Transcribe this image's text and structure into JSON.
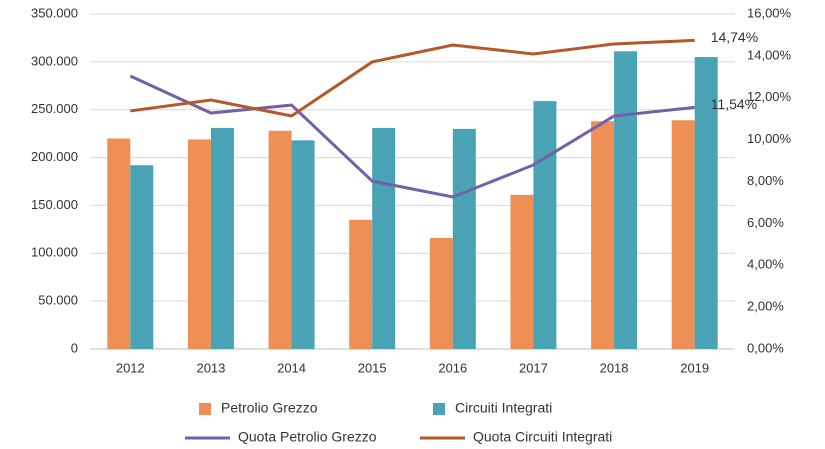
{
  "chart_data": {
    "type": "bar_line",
    "categories": [
      "2012",
      "2013",
      "2014",
      "2015",
      "2016",
      "2017",
      "2018",
      "2019"
    ],
    "series": [
      {
        "name": "Petrolio Grezzo",
        "color": "#ee8f55",
        "kind": "bar",
        "values": [
          220000,
          219000,
          228000,
          135000,
          116000,
          161000,
          238000,
          239000
        ]
      },
      {
        "name": "Circuiti Integrati",
        "color": "#4aa3b5",
        "kind": "bar",
        "values": [
          192000,
          231000,
          218000,
          231000,
          230000,
          259000,
          311000,
          305000
        ]
      },
      {
        "name": "Quota Petrolio Grezzo",
        "color": "#7360a6",
        "kind": "line",
        "axis": "y2",
        "values": [
          13.04,
          11.27,
          11.65,
          8.02,
          7.26,
          8.79,
          11.13,
          11.54
        ],
        "value_labels": [
          null,
          null,
          null,
          null,
          null,
          null,
          null,
          "11,54%"
        ]
      },
      {
        "name": "Quota Circuiti Integrati",
        "color": "#b5562b",
        "kind": "line",
        "axis": "y2",
        "values": [
          11.37,
          11.89,
          11.13,
          13.71,
          14.52,
          14.09,
          14.57,
          14.74
        ],
        "value_labels": [
          null,
          null,
          null,
          null,
          null,
          null,
          null,
          "14,74%"
        ]
      }
    ],
    "ylim": [
      0,
      350000
    ],
    "yticks": [
      0,
      {
        "value": 50000,
        "label": "50.000"
      },
      {
        "value": 100000,
        "label": "100.000"
      },
      {
        "value": 150000,
        "label": "150.000"
      },
      {
        "value": 200000,
        "label": "200.000"
      },
      {
        "value": 250000,
        "label": "250.000"
      },
      {
        "value": 300000,
        "label": "300.000"
      },
      {
        "value": 350000,
        "label": "350.000"
      }
    ],
    "y2lim": [
      0,
      16
    ],
    "y2ticks": [
      {
        "value": 0,
        "label": "0,00%"
      },
      {
        "value": 2,
        "label": "2,00%"
      },
      {
        "value": 4,
        "label": "4,00%"
      },
      {
        "value": 6,
        "label": "6,00%"
      },
      {
        "value": 8,
        "label": "8,00%"
      },
      {
        "value": 10,
        "label": "10,00%"
      },
      {
        "value": 12,
        "label": "12,00%"
      },
      {
        "value": 14,
        "label": "14,00%"
      },
      {
        "value": 16,
        "label": "16,00%"
      }
    ],
    "grid": true,
    "legend": "bottom"
  }
}
